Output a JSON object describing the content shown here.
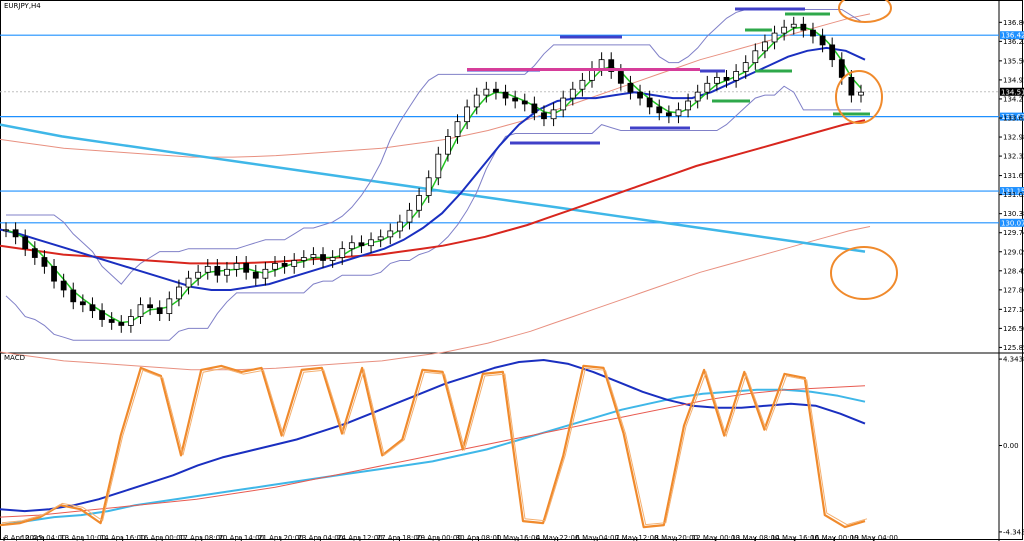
{
  "window": {
    "title": "EURJPY,H4",
    "indicator_label": "MACD"
  },
  "colors": {
    "background": "#ffffff",
    "grid_border": "#000000",
    "hline": "#1e90ff",
    "trendline": "#3fb7e8",
    "ma_red": "#d8261e",
    "ma_blue": "#1a2fc0",
    "ma_green": "#22c422",
    "bollinger": "#8080c8",
    "envelope": "#e89080",
    "marker_blue": "#4040c8",
    "marker_green": "#2ea84a",
    "marker_magenta": "#d63d9a",
    "circle": "#f08a2c",
    "macd_orange": "#f08a2c",
    "macd_blue": "#1a2fc0",
    "macd_cyan": "#3fb7e8",
    "macd_red": "#e85a50"
  },
  "chart_data": [
    {
      "type": "line",
      "title": "EURJPY,H4",
      "x_labels": [
        "8 Apr 2015",
        "10 Apr 04:00",
        "13 Apr 10:00",
        "14 Apr 16:00",
        "16 Apr 00:00",
        "17 Apr 08:00",
        "20 Apr 14:00",
        "21 Apr 20:00",
        "23 Apr 04:00",
        "24 Apr 12:00",
        "27 Apr 18:00",
        "29 Apr 00:00",
        "30 Apr 08:00",
        "1 May 16:00",
        "4 May 22:00",
        "6 May 04:00",
        "7 May 12:00",
        "8 May 20:00",
        "12 May 00:00",
        "13 May 08:00",
        "14 May 16:00",
        "16 May 00:00",
        "19 May 04:00"
      ],
      "y_ticks": [
        136.865,
        136.22,
        135.56,
        134.915,
        134.27,
        133.625,
        132.98,
        132.335,
        131.675,
        131.03,
        130.385,
        129.74,
        129.095,
        128.45,
        127.805,
        127.145,
        126.5,
        125.855
      ],
      "ylim": [
        125.7,
        137.35
      ],
      "horizontal_levels": [
        136.429,
        133.672,
        131.151,
        130.075
      ],
      "level_labels": [
        "136.429",
        "133.672",
        "131.151",
        "130.075"
      ],
      "current_price": "134.513",
      "candles": [
        129.84,
        129.6,
        129.2,
        128.9,
        128.6,
        128.1,
        127.8,
        127.4,
        127.3,
        127.1,
        126.8,
        126.7,
        126.6,
        126.9,
        127.3,
        127.2,
        127.0,
        127.5,
        127.9,
        128.2,
        128.4,
        128.6,
        128.3,
        128.5,
        128.7,
        128.4,
        128.2,
        128.5,
        128.7,
        128.6,
        128.8,
        128.9,
        129.0,
        128.8,
        128.9,
        129.2,
        129.4,
        129.3,
        129.5,
        129.6,
        129.8,
        130.1,
        130.5,
        131.0,
        131.6,
        132.4,
        133.0,
        133.5,
        134.0,
        134.4,
        134.6,
        134.5,
        134.3,
        134.2,
        134.1,
        133.8,
        133.6,
        133.9,
        134.3,
        134.6,
        134.9,
        135.3,
        135.6,
        135.2,
        134.8,
        134.5,
        134.3,
        134.0,
        133.8,
        133.7,
        133.9,
        134.2,
        134.5,
        134.8,
        135.0,
        134.9,
        135.2,
        135.5,
        135.9,
        136.2,
        136.5,
        136.7,
        136.8,
        136.6,
        136.4,
        136.1,
        135.6,
        135.0,
        134.4,
        134.5
      ],
      "series": [
        {
          "name": "",
          "values": [
            129.85,
            129.7,
            129.5,
            129.3,
            129.1,
            128.9,
            128.7,
            128.5,
            128.3,
            128.1,
            127.9,
            127.8,
            127.8,
            127.9,
            128.0,
            128.2,
            128.4,
            128.6,
            128.8,
            129.0,
            129.2,
            129.5,
            129.9,
            130.4,
            131.1,
            131.9,
            132.7,
            133.4,
            133.9,
            134.2,
            134.3,
            134.3,
            134.4,
            134.5,
            134.4,
            134.3,
            134.3,
            134.5,
            134.8,
            135.1,
            135.4,
            135.7,
            135.9,
            136.0,
            135.9,
            135.6
          ]
        },
        {
          "name": "",
          "values": [
            129.3,
            129.2,
            129.1,
            129.0,
            128.95,
            128.9,
            128.85,
            128.8,
            128.75,
            128.7,
            128.7,
            128.7,
            128.72,
            128.75,
            128.8,
            128.85,
            128.9,
            128.95,
            129.0,
            129.1,
            129.2,
            129.3,
            129.45,
            129.6,
            129.8,
            130.0,
            130.25,
            130.5,
            130.75,
            131.0,
            131.25,
            131.5,
            131.75,
            132.0,
            132.2,
            132.4,
            132.6,
            132.8,
            133.0,
            133.2,
            133.4,
            133.55
          ]
        },
        {
          "name": "",
          "values": [
            133.4,
            133.0,
            132.7,
            132.4,
            132.1,
            131.8,
            131.5,
            131.2,
            130.9,
            130.6,
            130.3,
            130.0,
            129.7,
            129.4,
            129.1
          ]
        }
      ]
    },
    {
      "type": "line",
      "title": "MACD",
      "y_ticks": [
        4.3438,
        0.0,
        -4.3438
      ],
      "ylim": [
        -4.6,
        4.6
      ],
      "series": [
        {
          "name": "",
          "values": [
            -4.0,
            -3.8,
            -3.6,
            -3.5,
            -3.3,
            -3.0,
            -2.8,
            -2.6,
            -2.4,
            -2.2,
            -2.0,
            -1.8,
            -1.6,
            -1.4,
            -1.2,
            -1.0,
            -0.8,
            -0.5,
            -0.2,
            0.2,
            0.6,
            1.0,
            1.4,
            1.8,
            2.1,
            2.4,
            2.6,
            2.7,
            2.8,
            2.8,
            2.7,
            2.5,
            2.2
          ]
        },
        {
          "name": "",
          "values": [
            -3.2,
            -3.3,
            -3.2,
            -3.0,
            -2.7,
            -2.3,
            -1.9,
            -1.5,
            -1.0,
            -0.6,
            -0.3,
            0.0,
            0.3,
            0.7,
            1.1,
            1.6,
            2.1,
            2.6,
            3.1,
            3.5,
            3.9,
            4.2,
            4.3,
            4.1,
            3.7,
            3.2,
            2.7,
            2.3,
            2.0,
            1.9,
            1.9,
            2.0,
            2.1,
            2.0,
            1.6,
            1.1
          ]
        },
        {
          "name": "",
          "values": [
            -3.6,
            -3.5,
            -3.3,
            -3.1,
            -2.9,
            -2.7,
            -2.4,
            -2.1,
            -1.7,
            -1.3,
            -0.9,
            -0.5,
            -0.1,
            0.3,
            0.7,
            1.1,
            1.5,
            1.9,
            2.3,
            2.6,
            2.8,
            2.9,
            3.0
          ]
        },
        {
          "name": "",
          "values": [
            -4.0,
            -3.9,
            -3.6,
            -3.0,
            -3.2,
            -3.9,
            0.5,
            3.9,
            3.5,
            -0.5,
            3.8,
            4.0,
            3.7,
            3.9,
            0.5,
            3.8,
            3.9,
            0.6,
            3.9,
            -0.5,
            0.3,
            3.8,
            3.7,
            -0.2,
            3.6,
            3.7,
            -3.8,
            -3.9,
            -0.5,
            4.0,
            3.9,
            0.6,
            -4.1,
            -4.0,
            1.0,
            3.8,
            0.5,
            3.7,
            0.8,
            3.6,
            3.4,
            -3.5,
            -4.1,
            -3.8
          ]
        }
      ]
    }
  ]
}
